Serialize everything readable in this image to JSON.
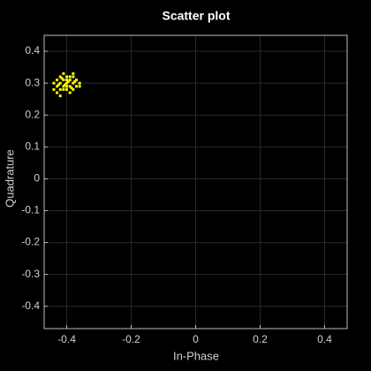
{
  "chart_data": {
    "type": "scatter",
    "title": "Scatter plot",
    "x_label": "In-Phase",
    "y_label": "Quadrature",
    "color": "#ffff00",
    "x": [
      -0.4,
      -0.39,
      -0.41,
      -0.38,
      -0.42,
      -0.4,
      -0.4,
      -0.39,
      -0.41,
      -0.37,
      -0.43,
      -0.38,
      -0.42,
      -0.39,
      -0.41,
      -0.37,
      -0.43,
      -0.4,
      -0.4,
      -0.38,
      -0.42,
      -0.36,
      -0.44,
      -0.39,
      -0.41,
      -0.43,
      -0.42,
      -0.36,
      -0.38,
      -0.44,
      -0.395,
      -0.405,
      -0.385,
      -0.415,
      -0.375,
      -0.425
    ],
    "values": [
      0.3,
      0.31,
      0.29,
      0.3,
      0.3,
      0.32,
      0.28,
      0.29,
      0.31,
      0.31,
      0.29,
      0.28,
      0.32,
      0.32,
      0.28,
      0.29,
      0.31,
      0.31,
      0.29,
      0.32,
      0.28,
      0.3,
      0.3,
      0.27,
      0.33,
      0.27,
      0.26,
      0.29,
      0.33,
      0.28,
      0.305,
      0.295,
      0.285,
      0.315,
      0.305,
      0.295
    ],
    "xlim": [
      -0.47,
      0.47
    ],
    "ylim": [
      -0.47,
      0.45
    ],
    "xticks": [
      -0.4,
      -0.2,
      0,
      0.2,
      0.4
    ],
    "yticks": [
      -0.4,
      -0.3,
      -0.2,
      -0.1,
      0,
      0.1,
      0.2,
      0.3,
      0.4
    ],
    "grid": true
  }
}
